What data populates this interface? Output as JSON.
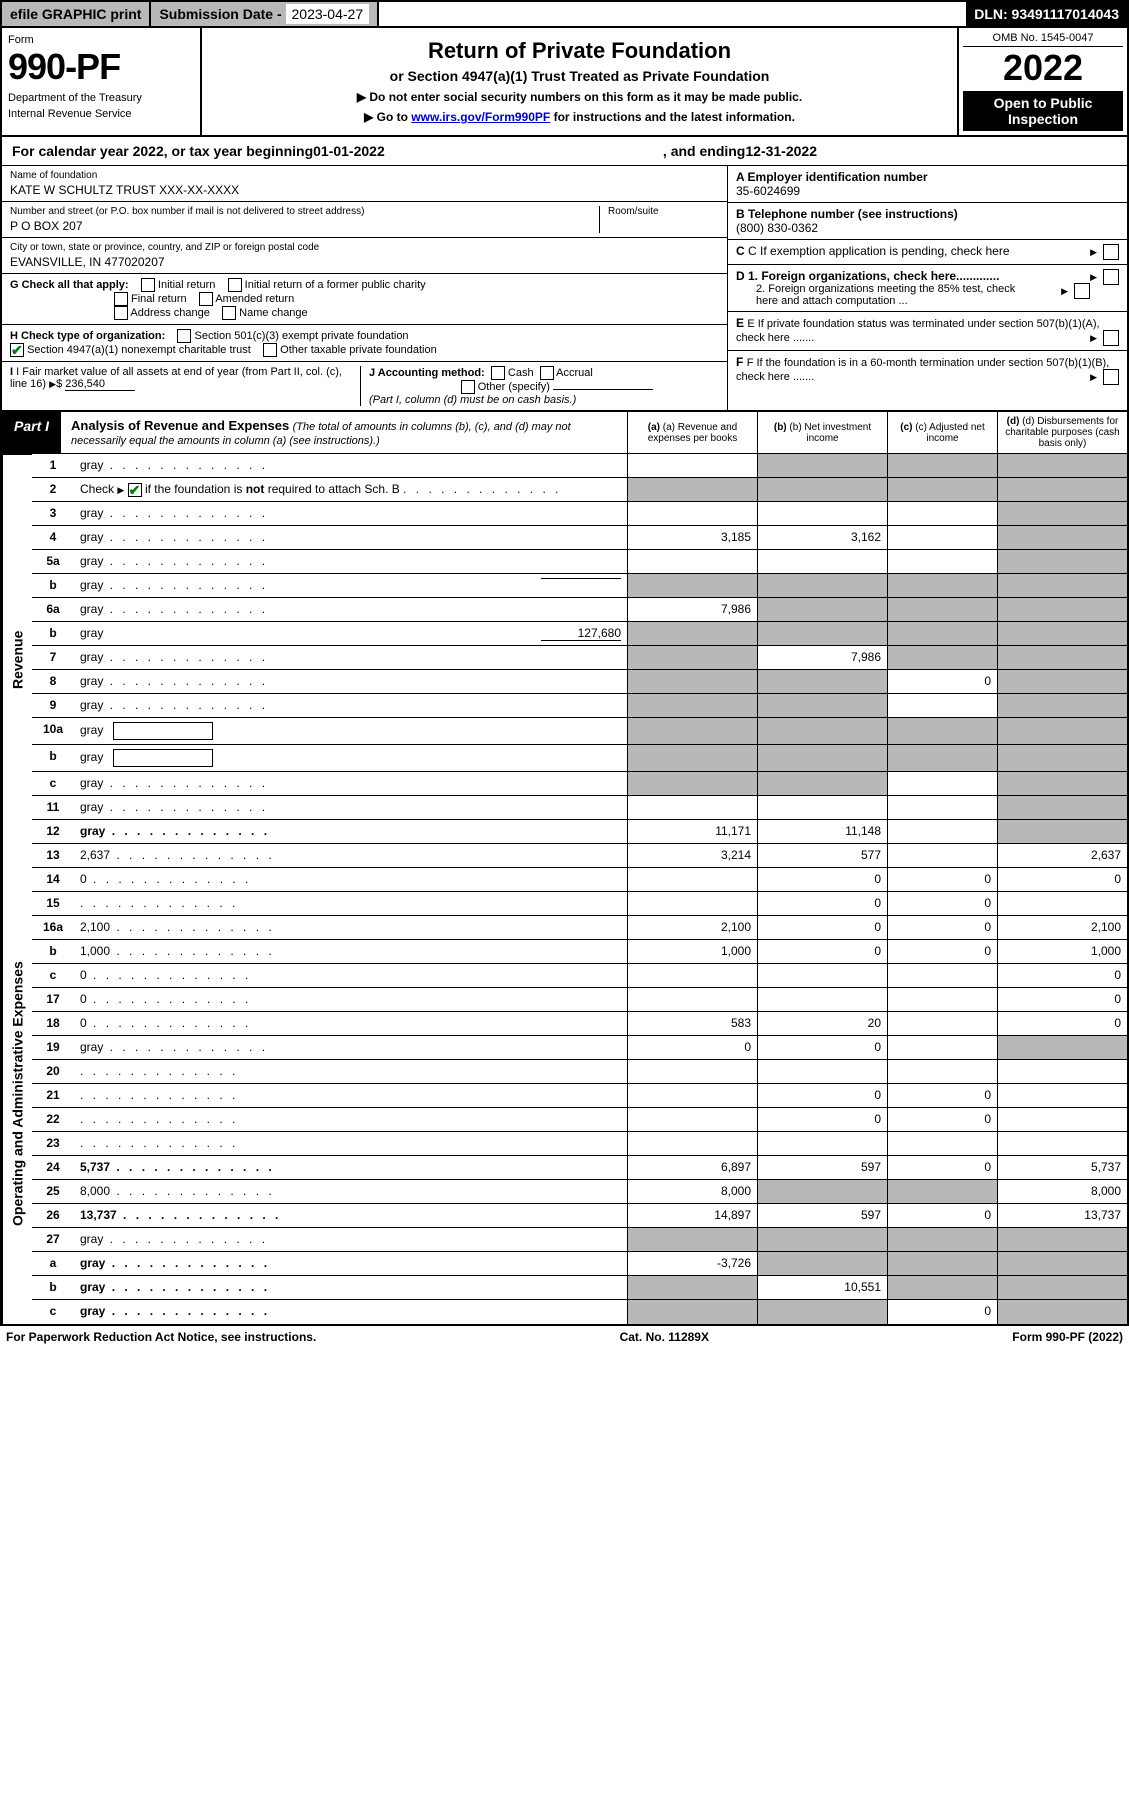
{
  "topbar": {
    "efile_label": "efile GRAPHIC print",
    "subdate_label": "Submission Date - ",
    "subdate_val": "2023-04-27",
    "dln_label": "DLN: ",
    "dln_val": "93491117014043"
  },
  "header": {
    "form_word": "Form",
    "form_num": "990-PF",
    "dept": "Department of the Treasury",
    "irs": "Internal Revenue Service",
    "title": "Return of Private Foundation",
    "subtitle": "or Section 4947(a)(1) Trust Treated as Private Foundation",
    "instr1": "▶ Do not enter social security numbers on this form as it may be made public.",
    "instr2_pre": "▶ Go to ",
    "instr2_link": "www.irs.gov/Form990PF",
    "instr2_post": " for instructions and the latest information.",
    "omb": "OMB No. 1545-0047",
    "year": "2022",
    "inspect": "Open to Public Inspection"
  },
  "cal_year": {
    "pre": "For calendar year 2022, or tax year beginning ",
    "begin": "01-01-2022",
    "mid": ", and ending ",
    "end": "12-31-2022"
  },
  "info": {
    "name_label": "Name of foundation",
    "name_val": "KATE W SCHULTZ TRUST XXX-XX-XXXX",
    "addr_label": "Number and street (or P.O. box number if mail is not delivered to street address)",
    "addr_val": "P O BOX 207",
    "room_label": "Room/suite",
    "city_label": "City or town, state or province, country, and ZIP or foreign postal code",
    "city_val": "EVANSVILLE, IN  477020207",
    "a_label": "A Employer identification number",
    "a_val": "35-6024699",
    "b_label": "B Telephone number (see instructions)",
    "b_val": "(800) 830-0362",
    "c_label": "C If exemption application is pending, check here",
    "d1_label": "D 1. Foreign organizations, check here.............",
    "d2_label": "2. Foreign organizations meeting the 85% test, check here and attach computation ...",
    "e_label": "E If private foundation status was terminated under section 507(b)(1)(A), check here .......",
    "f_label": "F If the foundation is in a 60-month termination under section 507(b)(1)(B), check here ......."
  },
  "checks": {
    "g_label": "G Check all that apply:",
    "g_opts": [
      "Initial return",
      "Initial return of a former public charity",
      "Final return",
      "Amended return",
      "Address change",
      "Name change"
    ],
    "h_label": "H Check type of organization:",
    "h_opt1": "Section 501(c)(3) exempt private foundation",
    "h_opt2": "Section 4947(a)(1) nonexempt charitable trust",
    "h_opt3": "Other taxable private foundation",
    "i_label": "I Fair market value of all assets at end of year (from Part II, col. (c), line 16)",
    "i_val": "236,540",
    "j_label": "J Accounting method:",
    "j_opts": [
      "Cash",
      "Accrual",
      "Other (specify)"
    ],
    "j_note": "(Part I, column (d) must be on cash basis.)"
  },
  "part1": {
    "label": "Part I",
    "title": "Analysis of Revenue and Expenses",
    "note": "(The total of amounts in columns (b), (c), and (d) may not necessarily equal the amounts in column (a) (see instructions).)",
    "col_a": "(a) Revenue and expenses per books",
    "col_b": "(b) Net investment income",
    "col_c": "(c) Adjusted net income",
    "col_d": "(d) Disbursements for charitable purposes (cash basis only)"
  },
  "side_labels": {
    "revenue": "Revenue",
    "expenses": "Operating and Administrative Expenses"
  },
  "rows": [
    {
      "n": "1",
      "d": "gray",
      "a": "",
      "b": "gray",
      "c": "gray"
    },
    {
      "n": "2",
      "d": "gray",
      "nodots": true,
      "a": "gray",
      "b": "gray",
      "c": "gray"
    },
    {
      "n": "3",
      "d": "gray",
      "a": "",
      "b": "",
      "c": ""
    },
    {
      "n": "4",
      "d": "gray",
      "a": "3,185",
      "b": "3,162",
      "c": ""
    },
    {
      "n": "5a",
      "d": "gray",
      "a": "",
      "b": "",
      "c": ""
    },
    {
      "n": "b",
      "d": "gray",
      "inline": "",
      "a": "gray",
      "b": "gray",
      "c": "gray"
    },
    {
      "n": "6a",
      "d": "gray",
      "a": "7,986",
      "b": "gray",
      "c": "gray"
    },
    {
      "n": "b",
      "d": "gray",
      "inline": "127,680",
      "a": "gray",
      "b": "gray",
      "c": "gray"
    },
    {
      "n": "7",
      "d": "gray",
      "a": "gray",
      "b": "7,986",
      "c": "gray"
    },
    {
      "n": "8",
      "d": "gray",
      "a": "gray",
      "b": "gray",
      "c": "0"
    },
    {
      "n": "9",
      "d": "gray",
      "a": "gray",
      "b": "gray",
      "c": ""
    },
    {
      "n": "10a",
      "d": "gray",
      "subbox": true,
      "a": "gray",
      "b": "gray",
      "c": "gray"
    },
    {
      "n": "b",
      "d": "gray",
      "subbox": true,
      "a": "gray",
      "b": "gray",
      "c": "gray"
    },
    {
      "n": "c",
      "d": "gray",
      "a": "gray",
      "b": "gray",
      "c": ""
    },
    {
      "n": "11",
      "d": "gray",
      "a": "",
      "b": "",
      "c": ""
    },
    {
      "n": "12",
      "d": "gray",
      "bold": true,
      "a": "11,171",
      "b": "11,148",
      "c": ""
    },
    {
      "n": "13",
      "d": "2,637",
      "a": "3,214",
      "b": "577",
      "c": "",
      "sec": "exp"
    },
    {
      "n": "14",
      "d": "0",
      "a": "",
      "b": "0",
      "c": "0"
    },
    {
      "n": "15",
      "d": "",
      "a": "",
      "b": "0",
      "c": "0"
    },
    {
      "n": "16a",
      "d": "2,100",
      "a": "2,100",
      "b": "0",
      "c": "0"
    },
    {
      "n": "b",
      "d": "1,000",
      "a": "1,000",
      "b": "0",
      "c": "0"
    },
    {
      "n": "c",
      "d": "0",
      "a": "",
      "b": "",
      "c": ""
    },
    {
      "n": "17",
      "d": "0",
      "a": "",
      "b": "",
      "c": ""
    },
    {
      "n": "18",
      "d": "0",
      "a": "583",
      "b": "20",
      "c": ""
    },
    {
      "n": "19",
      "d": "gray",
      "a": "0",
      "b": "0",
      "c": ""
    },
    {
      "n": "20",
      "d": "",
      "a": "",
      "b": "",
      "c": ""
    },
    {
      "n": "21",
      "d": "",
      "a": "",
      "b": "0",
      "c": "0"
    },
    {
      "n": "22",
      "d": "",
      "a": "",
      "b": "0",
      "c": "0"
    },
    {
      "n": "23",
      "d": "",
      "a": "",
      "b": "",
      "c": ""
    },
    {
      "n": "24",
      "d": "5,737",
      "bold": true,
      "a": "6,897",
      "b": "597",
      "c": "0"
    },
    {
      "n": "25",
      "d": "8,000",
      "a": "8,000",
      "b": "gray",
      "c": "gray"
    },
    {
      "n": "26",
      "d": "13,737",
      "bold": true,
      "a": "14,897",
      "b": "597",
      "c": "0"
    },
    {
      "n": "27",
      "d": "gray",
      "a": "gray",
      "b": "gray",
      "c": "gray"
    },
    {
      "n": "a",
      "d": "gray",
      "bold": true,
      "a": "-3,726",
      "b": "gray",
      "c": "gray"
    },
    {
      "n": "b",
      "d": "gray",
      "bold": true,
      "a": "gray",
      "b": "10,551",
      "c": "gray"
    },
    {
      "n": "c",
      "d": "gray",
      "bold": true,
      "a": "gray",
      "b": "gray",
      "c": "0"
    }
  ],
  "footer": {
    "left": "For Paperwork Reduction Act Notice, see instructions.",
    "mid": "Cat. No. 11289X",
    "right": "Form 990-PF (2022)"
  },
  "colors": {
    "gray": "#b8b8b8",
    "black": "#000000",
    "link": "#0000cc",
    "green": "#008000"
  }
}
